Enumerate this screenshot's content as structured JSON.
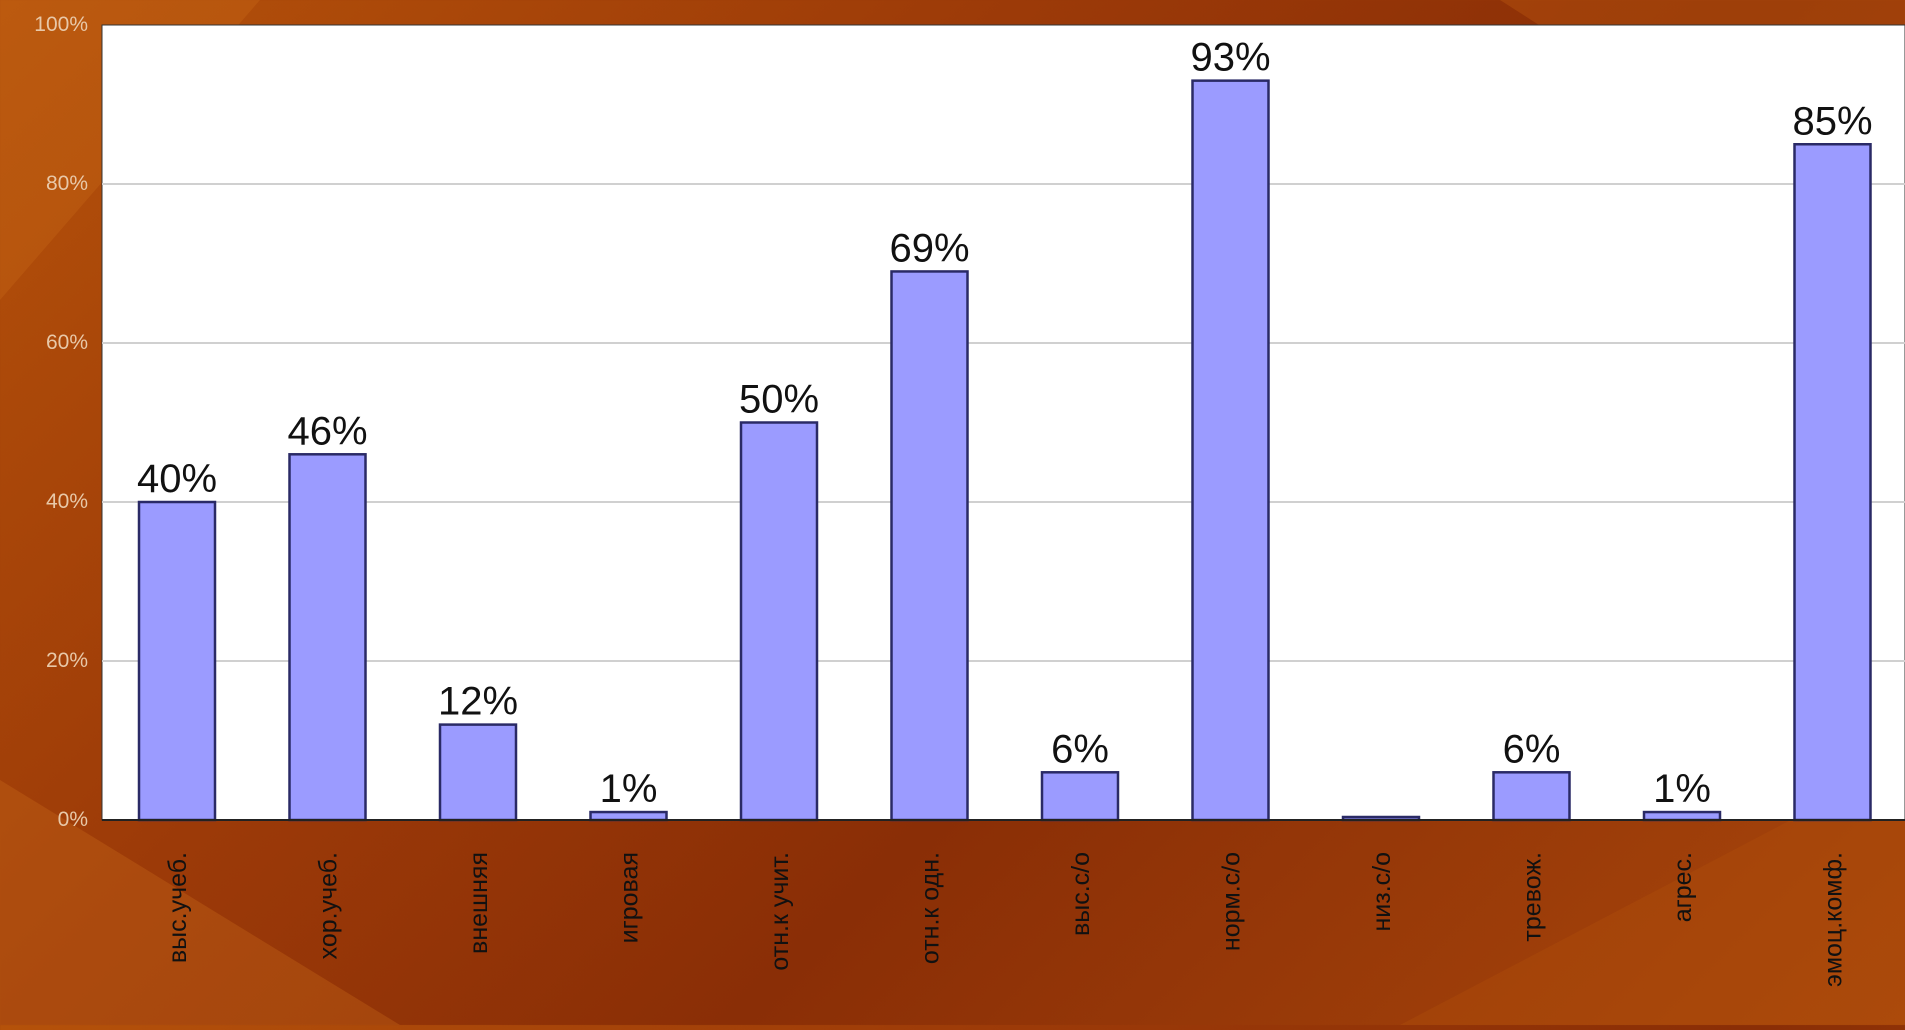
{
  "chart_data": {
    "type": "bar",
    "title": "",
    "xlabel": "",
    "ylabel": "",
    "ylim": [
      0,
      100
    ],
    "yticks": [
      0,
      20,
      40,
      60,
      80,
      100
    ],
    "ytick_suffix": "%",
    "grid": true,
    "categories": [
      "выс.учеб.",
      "хор.учеб.",
      "внешняя",
      "игровая",
      "отн.к учит.",
      "отн.к одн.",
      "выс.с/о",
      "норм.с/о",
      "низ.с/о",
      "тревож.",
      "агрес.",
      "эмоц.комф."
    ],
    "values": [
      40,
      46,
      12,
      1,
      50,
      69,
      6,
      93,
      0,
      6,
      1,
      85
    ],
    "data_labels": [
      "40%",
      "46%",
      "12%",
      "1%",
      "50%",
      "69%",
      "6%",
      "93%",
      "",
      "6%",
      "1%",
      "85%"
    ],
    "colors": {
      "bar_fill": "#9b9bff",
      "bar_stroke": "#2a2a66",
      "plot_bg": "#ffffff",
      "grid": "#d0d0d0",
      "tick_text": "#e8c8a8",
      "cat_text": "#111111",
      "label_text": "#111111"
    }
  }
}
